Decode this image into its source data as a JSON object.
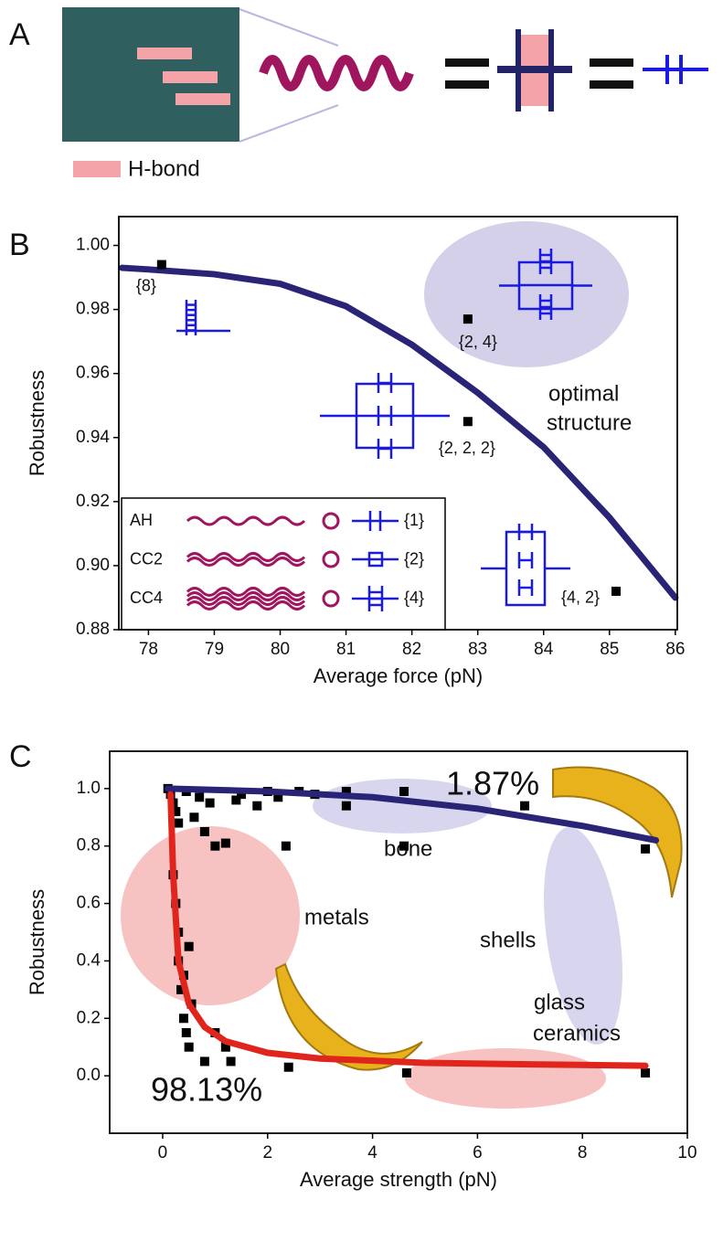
{
  "panel_labels": [
    "A",
    "B",
    "C"
  ],
  "legend_a": "H-bond",
  "chart_data": [
    {
      "type": "scatter",
      "xlabel": "Average force (pN)",
      "ylabel": "Robustness",
      "xlim": [
        77.55,
        86.03
      ],
      "ylim": [
        0.88,
        1.009
      ],
      "xticks": [
        78,
        79,
        80,
        81,
        82,
        83,
        84,
        85,
        86
      ],
      "yticks": [
        0.88,
        {
          "value": 0.9,
          "label": "0.90"
        },
        0.92,
        0.94,
        0.96,
        0.98,
        {
          "value": 1.0,
          "label": "1.00"
        }
      ],
      "series": [
        {
          "style": "line",
          "color": "#2a2477",
          "x": [
            77.6,
            78,
            79,
            80,
            81,
            82,
            83,
            84,
            85,
            86
          ],
          "values": [
            0.993,
            0.9925,
            0.991,
            0.988,
            0.981,
            0.969,
            0.954,
            0.937,
            0.915,
            0.89
          ]
        },
        {
          "style": "markers",
          "color": "#000000",
          "x": [
            78.2,
            82.85,
            82.85,
            85.1
          ],
          "values": [
            0.994,
            0.977,
            0.945,
            0.892
          ],
          "point_labels": [
            "{8}",
            "{2, 4}",
            "{2, 2, 2}",
            "{4, 2}"
          ]
        }
      ],
      "annotations": [
        "optimal",
        "structure"
      ],
      "inset_legend": [
        {
          "name": "AH",
          "key": "{1}"
        },
        {
          "name": "CC2",
          "key": "{2}"
        },
        {
          "name": "CC4",
          "key": "{4}"
        }
      ]
    },
    {
      "type": "scatter",
      "xlabel": "Average strength (pN)",
      "ylabel": "Robustness",
      "xlim": [
        -1.01,
        10
      ],
      "ylim": [
        -0.2,
        1.13
      ],
      "xticks": [
        0,
        2,
        4,
        6,
        8,
        10
      ],
      "yticks": [
        {
          "value": 0,
          "label": "0.0"
        },
        0.2,
        0.4,
        0.6,
        0.8,
        {
          "value": 1,
          "label": "1.0"
        }
      ],
      "series": [
        {
          "style": "markers",
          "color": "#000000",
          "x": [
            0.1,
            0.15,
            0.2,
            0.25,
            0.3,
            0.3,
            0.35,
            0.4,
            0.45,
            0.5,
            0.55,
            0.6,
            0.7,
            0.8,
            0.9,
            1.0,
            1.2,
            1.2,
            1.3,
            1.5,
            1.8,
            2.2,
            2.35,
            2.4,
            3.5,
            3.5,
            4.6,
            4.6,
            4.65,
            6.9,
            9.2,
            9.2,
            0.2,
            0.25,
            0.3,
            0.4,
            0.5,
            0.8,
            1.0,
            2.0,
            2.6,
            2.9,
            0.45,
            1.4
          ],
          "values": [
            1.0,
            0.98,
            0.95,
            0.92,
            0.88,
            0.5,
            0.3,
            0.2,
            0.15,
            0.1,
            0.25,
            0.9,
            0.97,
            0.85,
            0.95,
            0.8,
            0.81,
            0.1,
            0.05,
            0.98,
            0.94,
            0.97,
            0.8,
            0.03,
            0.94,
            0.99,
            0.8,
            0.99,
            0.01,
            0.94,
            0.79,
            0.01,
            0.7,
            0.6,
            0.4,
            0.35,
            0.45,
            0.05,
            0.15,
            0.99,
            0.99,
            0.98,
            0.99,
            0.96
          ]
        },
        {
          "style": "line",
          "color": "#2a2477",
          "x": [
            0.1,
            2,
            4,
            6,
            8,
            9.4
          ],
          "values": [
            1.0,
            0.99,
            0.97,
            0.93,
            0.87,
            0.82
          ]
        },
        {
          "style": "line",
          "color": "#e0261c",
          "x": [
            0.15,
            0.2,
            0.3,
            0.5,
            0.8,
            1.2,
            2,
            3,
            5,
            7,
            9.2
          ],
          "values": [
            0.98,
            0.7,
            0.4,
            0.25,
            0.17,
            0.12,
            0.08,
            0.06,
            0.045,
            0.04,
            0.035
          ]
        }
      ],
      "annotations": [
        "1.87%",
        "98.13%",
        "bone",
        "metals",
        "shells",
        "glass",
        "ceramics"
      ]
    }
  ]
}
